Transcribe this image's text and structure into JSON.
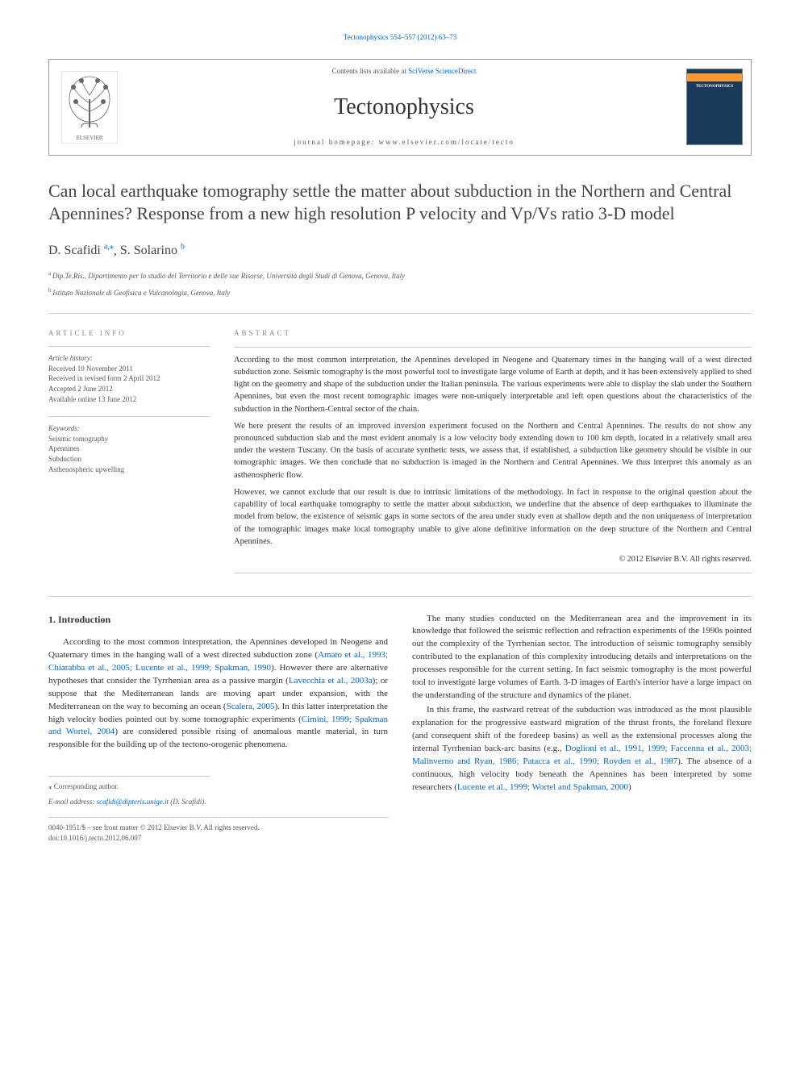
{
  "top_citation": "Tectonophysics 554–557 (2012) 63–73",
  "header": {
    "contents_text": "Contents lists available at",
    "contents_link": "SciVerse ScienceDirect",
    "journal_name": "Tectonophysics",
    "homepage_text": "journal homepage: www.elsevier.com/locate/tecto",
    "cover_label": "TECTONOPHYSICS"
  },
  "article_title": "Can local earthquake tomography settle the matter about subduction in the Northern and Central Apennines? Response from a new high resolution P velocity and Vp/Vs ratio 3-D model",
  "authors": [
    {
      "name": "D. Scafidi",
      "marks": "a,⁎"
    },
    {
      "name": "S. Solarino",
      "marks": "b"
    }
  ],
  "affiliations": [
    {
      "mark": "a",
      "text": "Dip.Te.Ris., Dipartimento per lo studio del Territorio e delle sue Risorse, Università degli Studi di Genova, Genova, Italy"
    },
    {
      "mark": "b",
      "text": "Istituto Nazionale di Geofisica e Vulcanologia, Genova, Italy"
    }
  ],
  "article_info": {
    "heading": "ARTICLE INFO",
    "history_label": "Article history:",
    "history": [
      "Received 10 November 2011",
      "Received in revised form 2 April 2012",
      "Accepted 2 June 2012",
      "Available online 13 June 2012"
    ],
    "keywords_label": "Keywords:",
    "keywords": [
      "Seismic tomography",
      "Apennines",
      "Subduction",
      "Asthenospheric upwelling"
    ]
  },
  "abstract": {
    "heading": "ABSTRACT",
    "paragraphs": [
      "According to the most common interpretation, the Apennines developed in Neogene and Quaternary times in the hanging wall of a west directed subduction zone. Seismic tomography is the most powerful tool to investigate large volume of Earth at depth, and it has been extensively applied to shed light on the geometry and shape of the subduction under the Italian peninsula. The various experiments were able to display the slab under the Southern Apennines, but even the most recent tomographic images were non-uniquely interpretable and left open questions about the characteristics of the subduction in the Northern-Central sector of the chain.",
      "We here present the results of an improved inversion experiment focused on the Northern and Central Apennines. The results do not show any pronounced subduction slab and the most evident anomaly is a low velocity body extending down to 100 km depth, located in a relatively small area under the western Tuscany. On the basis of accurate synthetic tests, we assess that, if established, a subduction like geometry should be visible in our tomographic images. We then conclude that no subduction is imaged in the Northern and Central Apennines. We thus interpret this anomaly as an asthenospheric flow.",
      "However, we cannot exclude that our result is due to intrinsic limitations of the methodology. In fact in response to the original question about the capability of local earthquake tomography to settle the matter about subduction, we underline that the absence of deep earthquakes to illuminate the model from below, the existence of seismic gaps in some sectors of the area under study even at shallow depth and the non uniqueness of interpretation of the tomographic images make local tomography unable to give alone definitive information on the deep structure of the Northern and Central Apennines."
    ],
    "copyright": "© 2012 Elsevier B.V. All rights reserved."
  },
  "body": {
    "section_number": "1.",
    "section_title": "Introduction",
    "left_column": [
      {
        "text": "According to the most common interpretation, the Apennines developed in Neogene and Quaternary times in the hanging wall of a west directed subduction zone (",
        "cite": "Amato et al., 1993; Chiarabba et al., 2005; Lucente et al., 1999; Spakman, 1990",
        "text2": "). However there are alternative hypotheses that consider the Tyrrhenian area as a passive margin (",
        "cite2": "Lavecchia et al., 2003a",
        "text3": "); or suppose that the Mediterranean lands are moving apart under expansion, with the Mediterranean on the way to becoming an ocean (",
        "cite3": "Scalera, 2005",
        "text4": "). In this latter interpretation the high velocity bodies pointed out by some tomographic experiments (",
        "cite4": "Cimini, 1999; Spakman and Wortel, 2004",
        "text5": ") are considered possible rising of anomalous mantle material, in turn responsible for the building up of the tectono-orogenic phenomena."
      }
    ],
    "right_column": [
      {
        "text": "The many studies conducted on the Mediterranean area and the improvement in its knowledge that followed the seismic reflection and refraction experiments of the 1990s pointed out the complexity of the Tyrrhenian sector. The introduction of seismic tomography sensibly contributed to the explanation of this complexity introducing details and interpretations on the processes responsible for the current setting. In fact seismic tomography is the most powerful tool to investigate large volumes of Earth. 3-D images of Earth's interior have a large impact on the understanding of the structure and dynamics of the planet."
      },
      {
        "text": "In this frame, the eastward retreat of the subduction was introduced as the most plausible explanation for the progressive eastward migration of the thrust fronts, the foreland flexure (and consequent shift of the foredeep basins) as well as the extensional processes along the internal Tyrrhenian back-arc basins (e.g., ",
        "cite": "Doglioni et al., 1991, 1999; Faccenna et al., 2003; Malinverno and Ryan, 1986; Patacca et al., 1990; Royden et al., 1987",
        "text2": "). The absence of a continuous, high velocity body beneath the Apennines has been interpreted by some researchers (",
        "cite2": "Lucente et al., 1999; Wortel and Spakman, 2000",
        "text3": ")"
      }
    ]
  },
  "footer": {
    "corr_label": "⁎ Corresponding author.",
    "email_label": "E-mail address:",
    "email": "scafidi@dipteris.unige.it",
    "email_name": "(D. Scafidi).",
    "issn": "0040-1951/$ – see front matter © 2012 Elsevier B.V. All rights reserved.",
    "doi": "doi:10.1016/j.tecto.2012.06.007"
  },
  "colors": {
    "link": "#0066cc",
    "text": "#333333",
    "muted": "#555555",
    "border": "#cccccc"
  }
}
